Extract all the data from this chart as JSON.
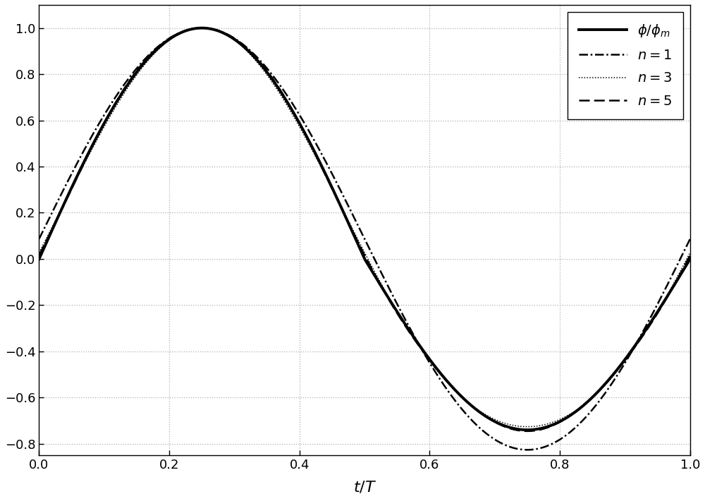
{
  "xlabel": "$t/T$",
  "xlim": [
    0,
    1
  ],
  "ylim": [
    -0.85,
    1.1
  ],
  "yticks": [
    -0.8,
    -0.6,
    -0.4,
    -0.2,
    0,
    0.2,
    0.4,
    0.6,
    0.8,
    1.0
  ],
  "xticks": [
    0,
    0.2,
    0.4,
    0.6,
    0.8,
    1.0
  ],
  "grid_color": "#b0b0b0",
  "line_color": "#000000",
  "background_color": "#ffffff",
  "legend_labels": [
    "$\\phi/\\phi_m$",
    "$n=1$",
    "$n=3$",
    "$n=5$"
  ],
  "t_forward": 0.4,
  "n_points": 5000,
  "phi_main_formula": "piecewise_sin_asymmetric",
  "phi_peak_time": 0.25,
  "phi_zero_time": 0.5,
  "phi_neg_amp": 0.74
}
